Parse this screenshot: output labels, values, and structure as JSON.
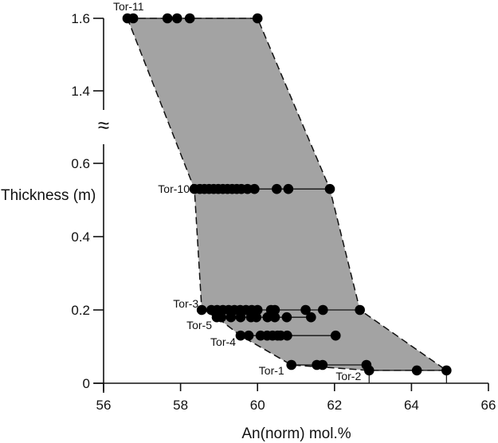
{
  "chart_data": {
    "type": "scatter",
    "title": "",
    "xlabel": "An(norm) mol.%",
    "ylabel": "Thickness (m)",
    "xlim": [
      56,
      66
    ],
    "x_ticks": [
      "56",
      "58",
      "60",
      "62",
      "64",
      "66"
    ],
    "y_ticks_lower": [
      "0",
      "0.2",
      "0.4",
      "0.6"
    ],
    "y_ticks_upper": [
      "1.4",
      "1.6"
    ],
    "axis_break": "≈",
    "grid": false,
    "legend": "none",
    "envelope_fill": "#a3a3a3",
    "series": [
      {
        "name": "Tor-11",
        "y": 1.6,
        "x": [
          56.62,
          56.77,
          57.66,
          57.91,
          58.24,
          60.0
        ]
      },
      {
        "name": "Tor-10",
        "y": 0.53,
        "x": [
          58.36,
          58.5,
          58.62,
          58.74,
          58.86,
          58.98,
          59.1,
          59.22,
          59.34,
          59.46,
          59.58,
          59.74,
          59.92,
          60.5,
          60.8,
          61.88
        ]
      },
      {
        "name": "Tor-3",
        "y": 0.2,
        "x": [
          58.55,
          58.8,
          58.95,
          59.1,
          59.25,
          59.4,
          59.55,
          59.7,
          59.85,
          60.0,
          60.35,
          60.45,
          61.25,
          61.7,
          62.66
        ]
      },
      {
        "name": "Tor-5",
        "y": 0.18,
        "x": [
          58.94,
          59.06,
          59.31,
          59.56,
          59.83,
          59.97,
          60.26,
          60.45,
          60.76,
          61.39
        ]
      },
      {
        "name": "Tor-4",
        "y": 0.13,
        "x": [
          59.56,
          59.77,
          60.08,
          60.25,
          60.39,
          60.52,
          60.6,
          60.77,
          62.03
        ]
      },
      {
        "name": "Tor-1",
        "y": 0.05,
        "x": [
          60.88,
          61.54,
          61.69,
          62.83
        ]
      },
      {
        "name": "Tor-2",
        "y": 0.035,
        "x": [
          62.9,
          64.14,
          64.91
        ]
      }
    ]
  }
}
